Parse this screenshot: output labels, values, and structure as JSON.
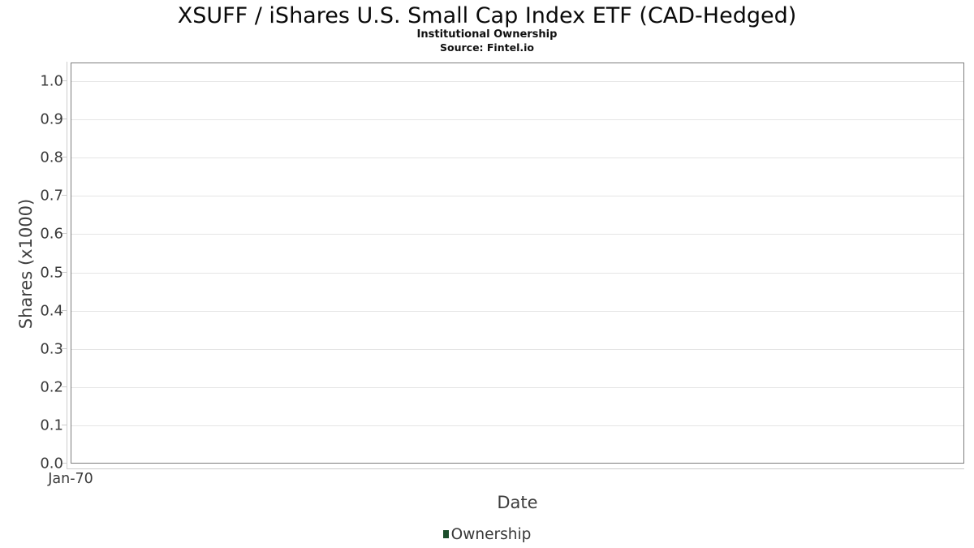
{
  "header": {
    "title": "XSUFF / iShares U.S. Small Cap Index ETF (CAD-Hedged)",
    "subtitle": "Institutional Ownership",
    "source": "Source: Fintel.io"
  },
  "chart_data": {
    "type": "bar",
    "title": "XSUFF / iShares U.S. Small Cap Index ETF (CAD-Hedged)",
    "subtitle": "Institutional Ownership",
    "source": "Source: Fintel.io",
    "xlabel": "Date",
    "ylabel": "Shares (x1000)",
    "ylim": [
      0.0,
      1.05
    ],
    "yticks": [
      0.0,
      0.1,
      0.2,
      0.3,
      0.4,
      0.5,
      0.6,
      0.7,
      0.8,
      0.9,
      1.0
    ],
    "ytick_labels": [
      "0.0",
      "0.1",
      "0.2",
      "0.3",
      "0.4",
      "0.5",
      "0.6",
      "0.7",
      "0.8",
      "0.9",
      "1.0"
    ],
    "xticks": [
      {
        "label": "Jan-70",
        "pos": 0.0
      }
    ],
    "categories": [],
    "series": [
      {
        "name": "Ownership",
        "color": "#1b4d2a",
        "values": []
      }
    ],
    "grid": "horizontal",
    "legend_position": "bottom",
    "plot_border_color": "#7d7d7d",
    "gridline_color": "#e5e5e5",
    "axis_line_color": "#cccccc"
  },
  "legend": {
    "items": [
      {
        "label": "Ownership",
        "color": "#1b4d2a"
      }
    ]
  }
}
